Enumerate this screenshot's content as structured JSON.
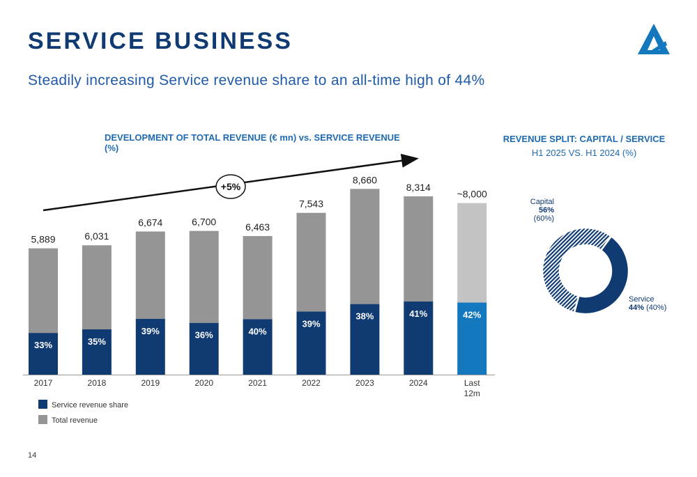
{
  "header": {
    "title": "SERVICE BUSINESS",
    "subtitle": "Steadily increasing Service revenue share to an all-time high of 44%"
  },
  "left_panel": {
    "heading": "DEVELOPMENT OF TOTAL REVENUE (€ mn) vs. SERVICE REVENUE (%)",
    "trend_label": "+5%"
  },
  "right_panel": {
    "heading": "REVENUE SPLIT: CAPITAL / SERVICE",
    "subheading": "H1 2025 VS. H1 2024 (%)",
    "capital": {
      "name": "Capital",
      "value": "56%",
      "prior": "(60%)"
    },
    "service": {
      "name": "Service",
      "value": "44%",
      "prior": "(40%)"
    }
  },
  "legend": {
    "service": "Service revenue share",
    "total": "Total revenue"
  },
  "page_number": "14",
  "colors": {
    "navy": "#0f3a72",
    "gray": "#959595",
    "light_gray": "#c4c4c4",
    "bright_blue": "#1478be",
    "accent_text": "#1f6ab0"
  },
  "chart_data": [
    {
      "type": "bar",
      "title": "DEVELOPMENT OF TOTAL REVENUE (€ mn) vs. SERVICE REVENUE (%)",
      "categories": [
        "2017",
        "2018",
        "2019",
        "2020",
        "2021",
        "2022",
        "2023",
        "2024",
        "Last 12m"
      ],
      "series": [
        {
          "name": "Total revenue",
          "values": [
            5889,
            6031,
            6674,
            6700,
            6463,
            7543,
            8660,
            8314,
            8000
          ],
          "labels": [
            "5,889",
            "6,031",
            "6,674",
            "6,700",
            "6,463",
            "7,543",
            "8,660",
            "8,314",
            "~8,000"
          ]
        },
        {
          "name": "Service revenue share",
          "values": [
            33,
            35,
            39,
            36,
            40,
            39,
            38,
            41,
            42
          ],
          "labels": [
            "33%",
            "35%",
            "39%",
            "36%",
            "40%",
            "39%",
            "38%",
            "41%",
            "42%"
          ]
        }
      ],
      "annotation": "+5%",
      "legend": "bottom-left",
      "grid": false
    },
    {
      "type": "pie",
      "title": "REVENUE SPLIT: CAPITAL / SERVICE",
      "subtitle": "H1 2025 VS. H1 2024 (%)",
      "categories": [
        "Capital",
        "Service"
      ],
      "values": [
        56,
        44
      ],
      "prior_values": [
        60,
        40
      ]
    }
  ]
}
